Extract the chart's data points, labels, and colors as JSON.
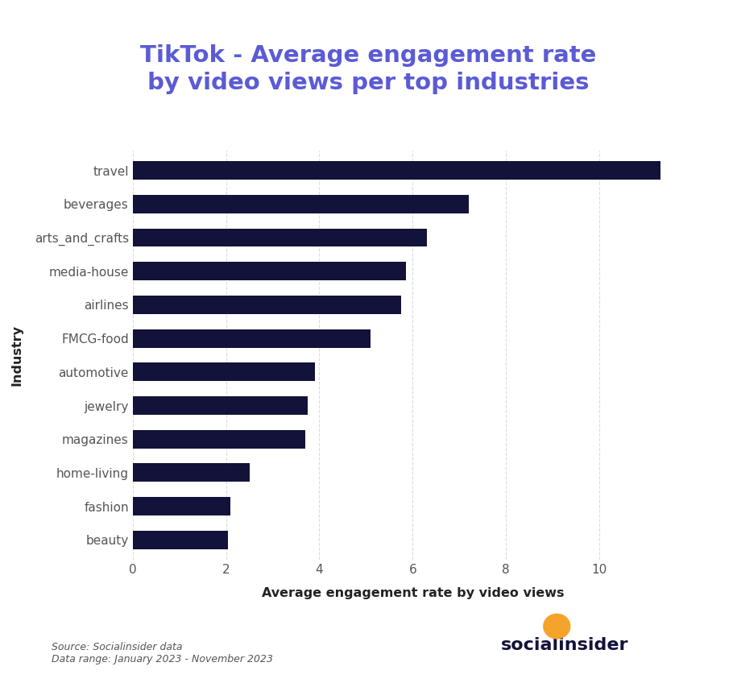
{
  "title_line1": "TikTok - Average engagement rate",
  "title_line2": "by video views per top industries",
  "title_color": "#5b5bd6",
  "xlabel": "Average engagement rate by video views",
  "ylabel": "Industry",
  "categories": [
    "travel",
    "beverages",
    "arts_and_crafts",
    "media-house",
    "airlines",
    "FMCG-food",
    "automotive",
    "jewelry",
    "magazines",
    "home-living",
    "fashion",
    "beauty"
  ],
  "values": [
    11.3,
    7.2,
    6.3,
    5.85,
    5.75,
    5.1,
    3.9,
    3.75,
    3.7,
    2.5,
    2.1,
    2.05
  ],
  "bar_color": "#12123a",
  "background_color": "#ffffff",
  "xlim": [
    0,
    12
  ],
  "xticks": [
    0,
    2,
    4,
    6,
    8,
    10
  ],
  "grid_color": "#dddddd",
  "source_text": "Source: Socialinsider data\nData range: January 2023 - November 2023",
  "logo_color": "#12123a",
  "orange_color": "#f5a32a"
}
